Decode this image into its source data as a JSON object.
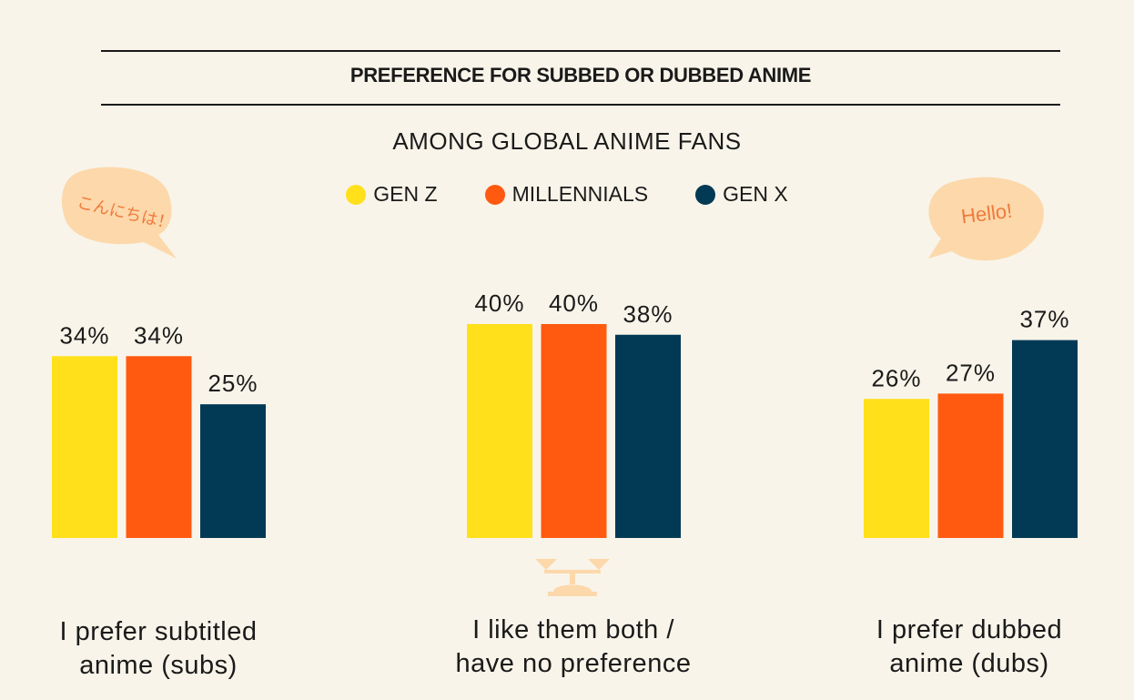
{
  "chart_data": {
    "type": "bar",
    "title": "PREFERENCE FOR SUBBED OR DUBBED ANIME",
    "subtitle": "AMONG GLOBAL ANIME FANS",
    "categories": [
      "I prefer subtitled\nanime (subs)",
      "I like them both /\nhave no preference",
      "I prefer dubbed\nanime (dubs)"
    ],
    "series": [
      {
        "name": "GEN Z",
        "color": "#ffe01b",
        "values": [
          34,
          40,
          26
        ]
      },
      {
        "name": "MILLENNIALS",
        "color": "#ff5a10",
        "values": [
          34,
          40,
          27
        ]
      },
      {
        "name": "GEN X",
        "color": "#023a55",
        "values": [
          25,
          38,
          37
        ]
      }
    ],
    "value_suffix": "%",
    "ylim": [
      0,
      40
    ],
    "grid": false,
    "legend_position": "top-center"
  },
  "decorations": {
    "bubble_left_text": "こんにちは！",
    "bubble_right_text": "Hello!",
    "bubble_color": "#fcd8ab",
    "bubble_text_color": "#f07a3a",
    "balance_scale_icon": "balance-scale-icon"
  }
}
